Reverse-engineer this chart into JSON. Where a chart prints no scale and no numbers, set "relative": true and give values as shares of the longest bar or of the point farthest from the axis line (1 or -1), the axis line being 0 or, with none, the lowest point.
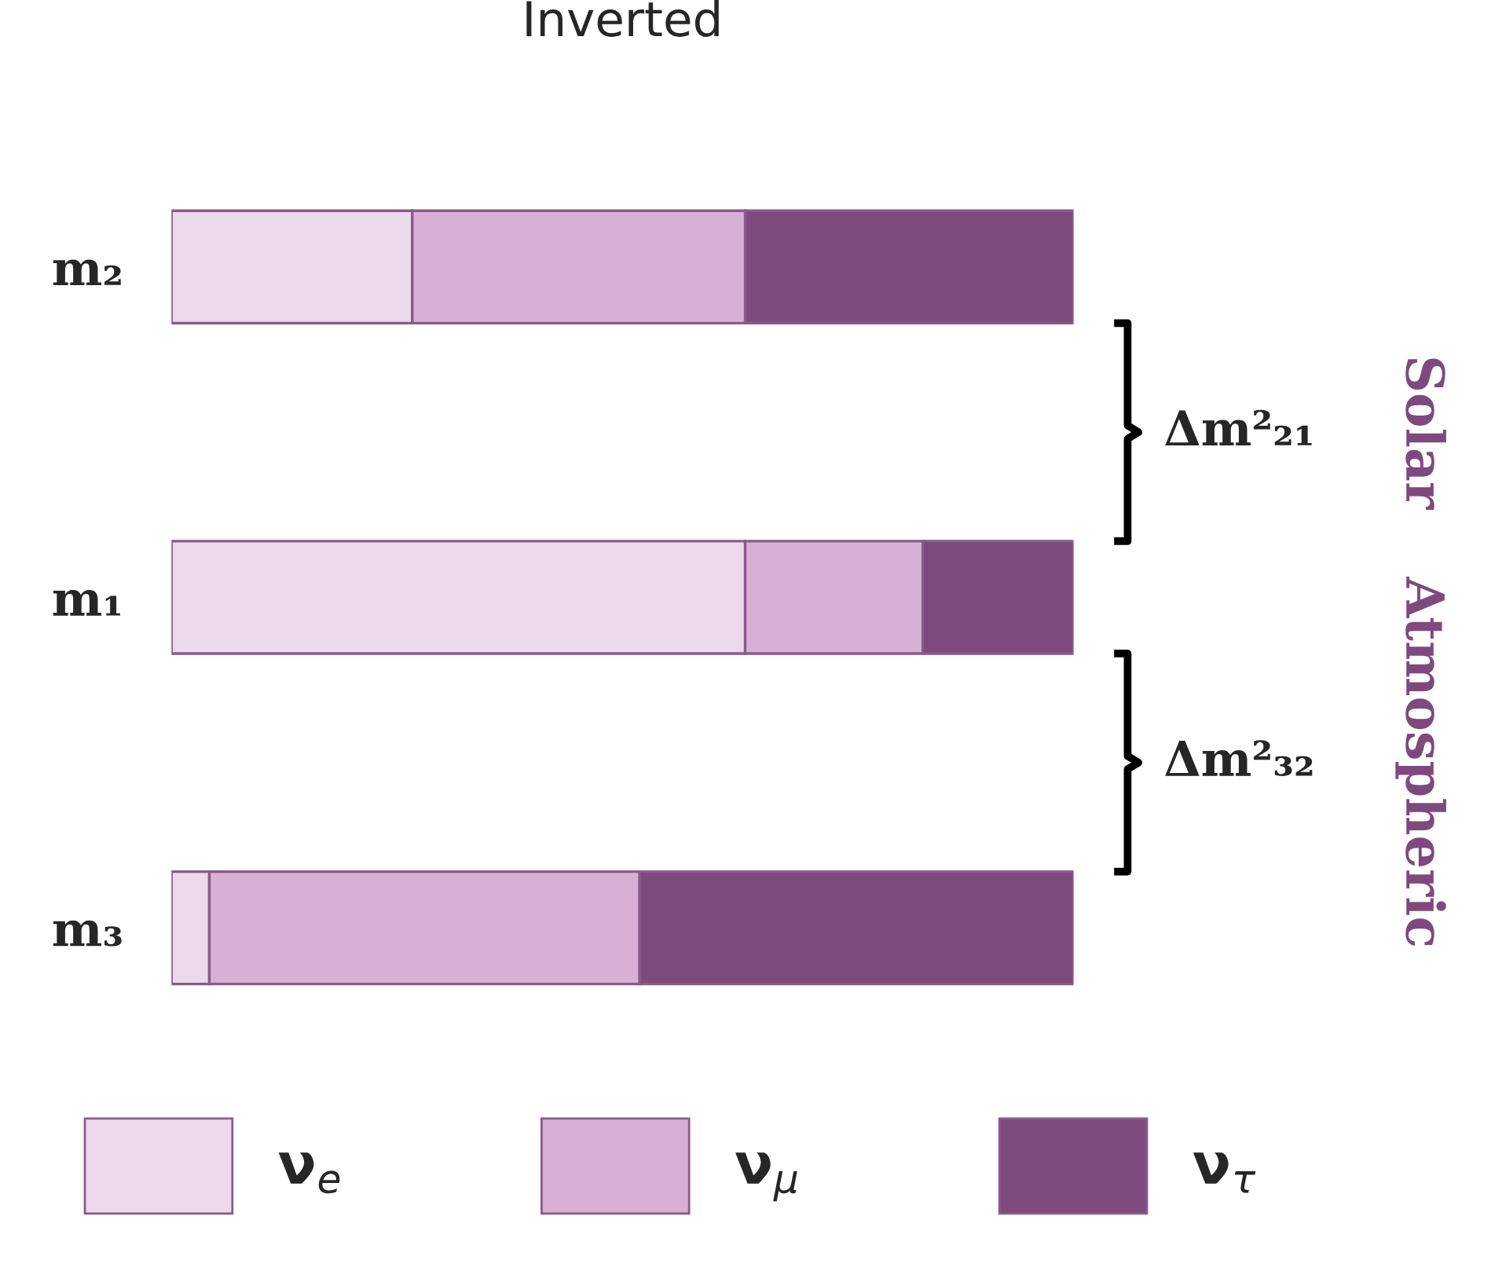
{
  "chart_data": {
    "type": "bar",
    "orientation": "horizontal",
    "stacked": true,
    "relative": true,
    "title": "Inverted",
    "categories": [
      "m₂",
      "m₁",
      "m₃"
    ],
    "series": [
      {
        "name": "ν$_{e}$",
        "color": "#ecd9ec",
        "values": [
          0.267,
          0.636,
          0.042
        ]
      },
      {
        "name": "ν$_{μ}$",
        "color": "#d8b0d6",
        "values": [
          0.369,
          0.197,
          0.477
        ]
      },
      {
        "name": "ν$_{τ}$",
        "color": "#7e4a7e",
        "values": [
          0.364,
          0.167,
          0.481
        ]
      }
    ],
    "annotations": [
      "Δm²₂₁",
      "Δm²₃₂",
      "Solar",
      "Atmospheric"
    ],
    "legend": "bottom",
    "grid": false
  }
}
